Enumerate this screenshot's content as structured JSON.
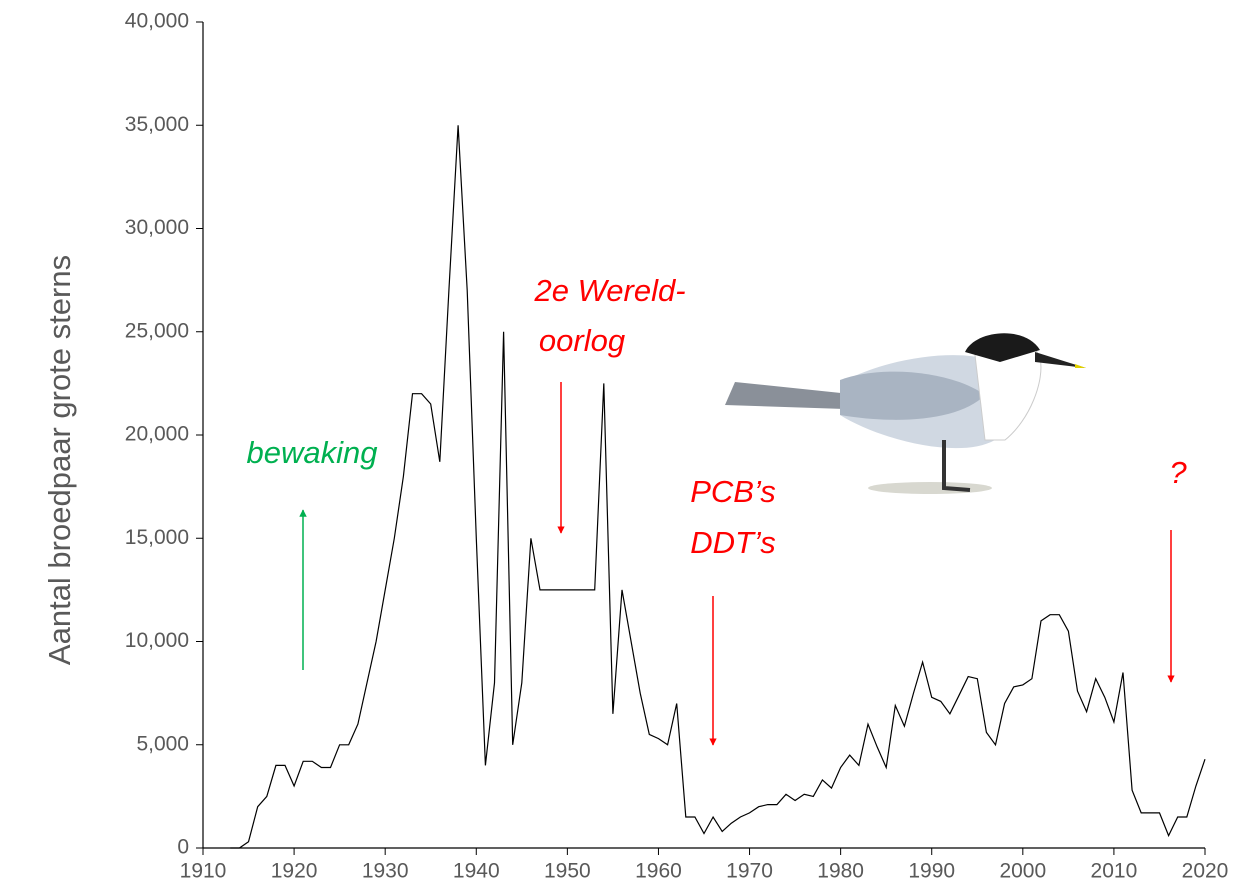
{
  "chart_data": {
    "type": "line",
    "y_label": "Aantal broedpaar grote sterns",
    "color": "#000000",
    "x": [
      1913,
      1914,
      1915,
      1916,
      1917,
      1918,
      1919,
      1920,
      1921,
      1922,
      1923,
      1924,
      1925,
      1926,
      1927,
      1928,
      1929,
      1930,
      1931,
      1932,
      1933,
      1934,
      1935,
      1936,
      1937,
      1938,
      1939,
      1940,
      1941,
      1942,
      1943,
      1944,
      1945,
      1946,
      1947,
      1948,
      1949,
      1950,
      1951,
      1952,
      1953,
      1954,
      1955,
      1956,
      1957,
      1958,
      1959,
      1960,
      1961,
      1962,
      1963,
      1964,
      1965,
      1966,
      1967,
      1968,
      1969,
      1970,
      1971,
      1972,
      1973,
      1974,
      1975,
      1976,
      1977,
      1978,
      1979,
      1980,
      1981,
      1982,
      1983,
      1984,
      1985,
      1986,
      1987,
      1988,
      1989,
      1990,
      1991,
      1992,
      1993,
      1994,
      1995,
      1996,
      1997,
      1998,
      1999,
      2000,
      2001,
      2002,
      2003,
      2004,
      2005,
      2006,
      2007,
      2008,
      2009,
      2010,
      2011,
      2012,
      2013,
      2014,
      2015,
      2016,
      2017,
      2018,
      2019,
      2020
    ],
    "values": [
      0,
      0,
      300,
      2000,
      2500,
      4000,
      4000,
      3000,
      4200,
      4200,
      3900,
      3900,
      5000,
      5000,
      6000,
      8000,
      10000,
      12500,
      15000,
      18000,
      22000,
      22000,
      21500,
      18700,
      27000,
      35000,
      27000,
      15000,
      4000,
      8000,
      25000,
      5000,
      8000,
      15000,
      12500,
      12500,
      12500,
      12500,
      12500,
      12500,
      12500,
      22500,
      6500,
      12500,
      10000,
      7500,
      5500,
      5300,
      5000,
      7000,
      1500,
      1500,
      700,
      1500,
      800,
      1200,
      1500,
      1700,
      2000,
      2100,
      2100,
      2600,
      2300,
      2600,
      2500,
      3300,
      2900,
      3900,
      4500,
      4000,
      6000,
      4900,
      3900,
      6900,
      5900,
      7500,
      9000,
      7300,
      7100,
      6500,
      7400,
      8300,
      8200,
      5600,
      5000,
      7000,
      7800,
      7900,
      8200,
      11000,
      11300,
      11300,
      10500,
      7600,
      6600,
      8200,
      7300,
      6100,
      8500,
      2800,
      1700,
      1700,
      1700,
      600,
      1500,
      1500,
      3000,
      4300
    ],
    "xlim": [
      1910,
      2020
    ],
    "xticks": [
      1910,
      1920,
      1930,
      1940,
      1950,
      1960,
      1970,
      1980,
      1990,
      2000,
      2010,
      2020
    ],
    "ylim": [
      0,
      40000
    ],
    "yticks": [
      0,
      {
        "value": 5000,
        "label": "5,000"
      },
      {
        "value": 10000,
        "label": "10,000"
      },
      {
        "value": 15000,
        "label": "15,000"
      },
      {
        "value": 20000,
        "label": "20,000"
      },
      {
        "value": 25000,
        "label": "25,000"
      },
      {
        "value": 30000,
        "label": "30,000"
      },
      {
        "value": 35000,
        "label": "35,000"
      },
      {
        "value": 40000,
        "label": "40,000"
      }
    ],
    "annotations": [
      {
        "text": "bewaking",
        "color": "#00b050"
      },
      {
        "text": "2e Wereld-",
        "color": "#ff0000"
      },
      {
        "text": "oorlog",
        "color": "#ff0000"
      },
      {
        "text": "PCB’s",
        "color": "#ff0000"
      },
      {
        "text": "DDT’s",
        "color": "#ff0000"
      },
      {
        "text": "?",
        "color": "#ff0000"
      }
    ]
  }
}
